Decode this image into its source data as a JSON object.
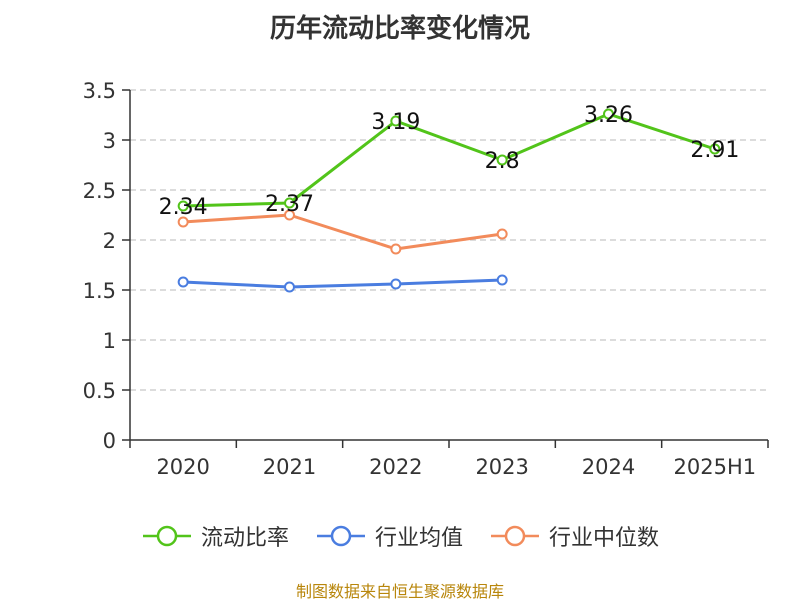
{
  "title": "历年流动比率变化情况",
  "source": "制图数据来自恒生聚源数据库",
  "chart_data": {
    "type": "line",
    "categories": [
      "2020",
      "2021",
      "2022",
      "2023",
      "2024",
      "2025H1"
    ],
    "ylim": [
      0,
      3.5
    ],
    "yticks": [
      "0",
      "0.5",
      "1",
      "1.5",
      "2",
      "2.5",
      "3",
      "3.5"
    ],
    "ytick_values": [
      0,
      0.5,
      1,
      1.5,
      2,
      2.5,
      3,
      3.5
    ],
    "grid": true,
    "legend_position": "bottom",
    "series": [
      {
        "name": "流动比率",
        "color": "#52c41a",
        "values": [
          2.34,
          2.37,
          3.19,
          2.8,
          3.26,
          2.91
        ],
        "labels": [
          "2.34",
          "2.37",
          "3.19",
          "2.8",
          "3.26",
          "2.91"
        ]
      },
      {
        "name": "行业均值",
        "color": "#4a7de0",
        "values": [
          1.58,
          1.53,
          1.56,
          1.6,
          null,
          null
        ],
        "labels": []
      },
      {
        "name": "行业中位数",
        "color": "#f28b5b",
        "values": [
          2.18,
          2.25,
          1.91,
          2.06,
          null,
          null
        ],
        "labels": []
      }
    ]
  }
}
